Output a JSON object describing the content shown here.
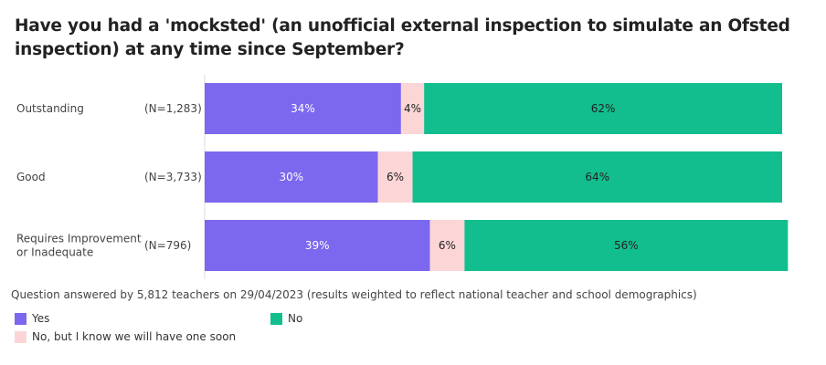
{
  "title": "Have you had a 'mocksted' (an unofficial external inspection to simulate an Ofsted inspection) at any time since September?",
  "footnote": "Question answered by 5,812 teachers on 29/04/2023 (results weighted to reflect national teacher and school demographics)",
  "colors": {
    "yes": "#7b68ee",
    "no_soon": "#fcd6d6",
    "no": "#12be8e"
  },
  "legend": {
    "yes": "Yes",
    "no": "No",
    "no_soon": "No, but I know we will have one soon"
  },
  "chart_data": {
    "type": "bar",
    "orientation": "horizontal",
    "stacked": true,
    "categories": [
      {
        "label": [
          "Outstanding"
        ],
        "n": "(N=1,283)"
      },
      {
        "label": [
          "Good"
        ],
        "n": "(N=3,733)"
      },
      {
        "label": [
          "Requires Improvement",
          "or Inadequate"
        ],
        "n": "(N=796)"
      }
    ],
    "series": [
      {
        "name": "Yes",
        "key": "yes",
        "values": [
          34,
          30,
          39
        ]
      },
      {
        "name": "No, but I know we will have one soon",
        "key": "no_soon",
        "values": [
          4,
          6,
          6
        ]
      },
      {
        "name": "No",
        "key": "no",
        "values": [
          62,
          64,
          56
        ]
      }
    ],
    "unit": "%",
    "xlim": [
      0,
      100
    ],
    "legend_position": "bottom"
  }
}
